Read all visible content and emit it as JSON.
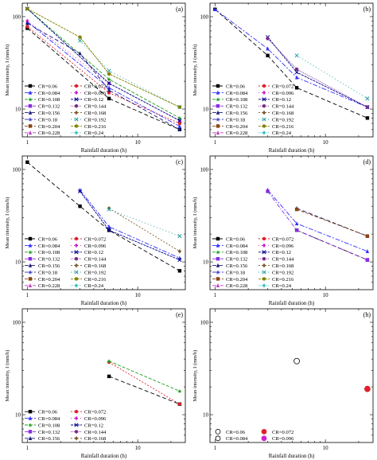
{
  "colors": {
    "CR=0.06": "#000000",
    "CR=0.072": "#e0202a",
    "CR=0.084": "#3030ff",
    "CR=0.096": "#d020d0",
    "CR=0.108": "#1e9e1e",
    "CR=0.12": "#00008b",
    "CR=0.132": "#8a2be2",
    "CR=0.144": "#7a2a8a",
    "CR=0.156": "#1a1a7a",
    "CR=0.168": "#7a5a2a",
    "CR=0.18": "#4040c0",
    "CR=0.192": "#20a0a0",
    "CR=0.204": "#8b4513",
    "CR=0.216": "#808000",
    "CR=0.228": "#c040c0",
    "CR=0.24": "#40c0c0"
  },
  "chart_data": [
    {
      "type": "line",
      "panel_label": "(a)",
      "xlabel": "Rainfall duration (h)",
      "ylabel": "Mean intensity, I (mm/h)",
      "xscale": "log",
      "yscale": "log",
      "xlim": [
        0.9,
        27
      ],
      "ylim": [
        5,
        140
      ],
      "xticks": [
        1,
        10
      ],
      "yticks": [
        10,
        100
      ],
      "legend": "bottom-left",
      "grid": false,
      "legend_entries": [
        "CR=0.06",
        "CR=0.072",
        "CR=0.084",
        "CR=0.096",
        "CR=0.108",
        "CR=0.12",
        "CR=0.132",
        "CR=0.144",
        "CR=0.156",
        "CR=0.168",
        "CR=0.18",
        "CR=0.192",
        "CR=0.204",
        "CR=0.216",
        "CR=0.228",
        "CR=0.24"
      ],
      "series": [
        {
          "name": "CR=0.06",
          "x": [
            1,
            5.5,
            24
          ],
          "y": [
            75,
            13,
            6
          ]
        },
        {
          "name": "CR=0.072",
          "x": [
            1,
            5.5,
            24
          ],
          "y": [
            78,
            15,
            7
          ]
        },
        {
          "name": "CR=0.084",
          "x": [
            1,
            5.5,
            24
          ],
          "y": [
            88,
            17,
            6.5
          ]
        },
        {
          "name": "CR=0.096",
          "x": [
            1,
            5.5,
            24
          ],
          "y": [
            90,
            19,
            7.5
          ]
        },
        {
          "name": "CR=0.108",
          "x": [
            1,
            5.5,
            24
          ],
          "y": [
            122,
            21,
            8
          ]
        },
        {
          "name": "CR=0.12",
          "x": [
            1,
            5.5,
            24
          ],
          "y": [
            122,
            19,
            7.5
          ]
        },
        {
          "name": "CR=0.156",
          "x": [
            1,
            3,
            5.5,
            24
          ],
          "y": [
            85,
            40,
            16,
            6
          ]
        },
        {
          "name": "CR=0.192",
          "x": [
            3,
            5.5,
            24
          ],
          "y": [
            55,
            26,
            10.5
          ]
        },
        {
          "name": "CR=0.216",
          "x": [
            1,
            3,
            5.5,
            24
          ],
          "y": [
            122,
            60,
            24,
            10.5
          ]
        }
      ]
    },
    {
      "type": "line",
      "panel_label": "(b)",
      "xlabel": "Rainfall duration (h)",
      "ylabel": "Mean intensity, I (mm/h)",
      "xscale": "log",
      "yscale": "log",
      "xlim": [
        0.9,
        27
      ],
      "ylim": [
        5,
        140
      ],
      "xticks": [
        1,
        10
      ],
      "yticks": [
        10,
        100
      ],
      "legend": "bottom-left",
      "grid": false,
      "legend_entries": [
        "CR=0.06",
        "CR=0.072",
        "CR=0.084",
        "CR=0.096",
        "CR=0.108",
        "CR=0.12",
        "CR=0.132",
        "CR=0.144",
        "CR=0.156",
        "CR=0.168",
        "CR=0.18",
        "CR=0.192",
        "CR=0.204",
        "CR=0.216",
        "CR=0.228",
        "CR=0.24"
      ],
      "series": [
        {
          "name": "CR=0.06",
          "x": [
            1,
            3,
            5.5,
            24
          ],
          "y": [
            120,
            38,
            17,
            8
          ]
        },
        {
          "name": "CR=0.084",
          "x": [
            1,
            3,
            5.5,
            24
          ],
          "y": [
            120,
            45,
            22,
            10.5
          ]
        },
        {
          "name": "CR=0.12",
          "x": [
            3,
            5.5,
            24
          ],
          "y": [
            60,
            25,
            10.5
          ]
        },
        {
          "name": "CR=0.144",
          "x": [
            3,
            5.5,
            24
          ],
          "y": [
            58,
            27,
            10.5
          ]
        },
        {
          "name": "CR=0.192",
          "x": [
            5.5,
            24
          ],
          "y": [
            38,
            13
          ]
        }
      ]
    },
    {
      "type": "line",
      "panel_label": "(c)",
      "xlabel": "Rainfall duration (h)",
      "ylabel": "Mean intensity, I (mm/h)",
      "xscale": "log",
      "yscale": "log",
      "xlim": [
        0.9,
        27
      ],
      "ylim": [
        5,
        140
      ],
      "xticks": [
        1,
        10
      ],
      "yticks": [
        10,
        100
      ],
      "legend": "bottom-left",
      "grid": false,
      "legend_entries": [
        "CR=0.06",
        "CR=0.072",
        "CR=0.084",
        "CR=0.096",
        "CR=0.108",
        "CR=0.12",
        "CR=0.132",
        "CR=0.144",
        "CR=0.156",
        "CR=0.168",
        "CR=0.18",
        "CR=0.192",
        "CR=0.204",
        "CR=0.216",
        "CR=0.228",
        "CR=0.24"
      ],
      "series": [
        {
          "name": "CR=0.06",
          "x": [
            1,
            3,
            5.5,
            24
          ],
          "y": [
            120,
            40,
            22,
            8
          ]
        },
        {
          "name": "CR=0.084",
          "x": [
            3,
            5.5,
            24
          ],
          "y": [
            60,
            24,
            11
          ]
        },
        {
          "name": "CR=0.12",
          "x": [
            3,
            5.5,
            24
          ],
          "y": [
            58,
            22,
            10.5
          ]
        },
        {
          "name": "CR=0.168",
          "x": [
            5.5,
            24
          ],
          "y": [
            38,
            13
          ]
        },
        {
          "name": "CR=0.192",
          "x": [
            5.5,
            24
          ],
          "y": [
            37,
            19
          ]
        }
      ]
    },
    {
      "type": "line",
      "panel_label": "(d)",
      "xlabel": "Rainfall duration (h)",
      "ylabel": "Mean intensity, I (mm/h)",
      "xscale": "log",
      "yscale": "log",
      "xlim": [
        0.9,
        27
      ],
      "ylim": [
        5,
        140
      ],
      "xticks": [
        1,
        10
      ],
      "yticks": [
        10,
        100
      ],
      "legend": "bottom-left",
      "grid": false,
      "legend_entries": [
        "CR=0.06",
        "CR=0.072",
        "CR=0.084",
        "CR=0.096",
        "CR=0.108",
        "CR=0.12",
        "CR=0.132",
        "CR=0.144",
        "CR=0.156",
        "CR=0.168",
        "CR=0.18",
        "CR=0.192",
        "CR=0.204",
        "CR=0.216",
        "CR=0.228",
        "CR=0.24"
      ],
      "series": [
        {
          "name": "CR=0.06",
          "x": [
            5.5,
            24
          ],
          "y": [
            22,
            10.5
          ]
        },
        {
          "name": "CR=0.084",
          "x": [
            3,
            5.5,
            24
          ],
          "y": [
            60,
            26,
            13
          ]
        },
        {
          "name": "CR=0.132",
          "x": [
            3,
            5.5,
            24
          ],
          "y": [
            58,
            22,
            10.5
          ]
        },
        {
          "name": "CR=0.156",
          "x": [
            5.5,
            24
          ],
          "y": [
            38,
            19
          ]
        },
        {
          "name": "CR=0.204",
          "x": [
            5.5,
            24
          ],
          "y": [
            37,
            19
          ]
        }
      ]
    },
    {
      "type": "line",
      "panel_label": "(e)",
      "xlabel": "Rainfall duration (h)",
      "ylabel": "Mean intensity, I (mm/h)",
      "xscale": "log",
      "yscale": "log",
      "xlim": [
        0.9,
        27
      ],
      "ylim": [
        5,
        140
      ],
      "xticks": [
        1,
        10
      ],
      "yticks": [
        10,
        100
      ],
      "legend": "bottom-left",
      "grid": false,
      "legend_entries": [
        "CR=0.06",
        "CR=0.072",
        "CR=0.084",
        "CR=0.096",
        "CR=0.108",
        "CR=0.12",
        "CR=0.132",
        "CR=0.144",
        "CR=0.156",
        "CR=0.168"
      ],
      "series": [
        {
          "name": "CR=0.06",
          "x": [
            5.5,
            24
          ],
          "y": [
            26,
            13
          ]
        },
        {
          "name": "CR=0.072",
          "x": [
            5.5,
            24
          ],
          "y": [
            37,
            13
          ]
        },
        {
          "name": "CR=0.108",
          "x": [
            5.5,
            24
          ],
          "y": [
            38,
            18
          ]
        }
      ]
    },
    {
      "type": "scatter",
      "panel_label": "(h)",
      "xlabel": "Rainfall duration (h)",
      "ylabel": "Mean intensity, I (mm/h)",
      "xscale": "log",
      "yscale": "log",
      "xlim": [
        0.9,
        27
      ],
      "ylim": [
        5,
        140
      ],
      "xticks": [
        1,
        10
      ],
      "yticks": [
        10,
        100
      ],
      "legend": "bottom-left",
      "grid": false,
      "legend_entries": [
        "CR=0.06",
        "CR=0.072",
        "CR=0.084",
        "CR=0.096"
      ],
      "series": [
        {
          "name": "CR=0.06",
          "x": [
            5.5
          ],
          "y": [
            38
          ]
        },
        {
          "name": "CR=0.072",
          "x": [
            24
          ],
          "y": [
            19
          ]
        }
      ]
    }
  ]
}
